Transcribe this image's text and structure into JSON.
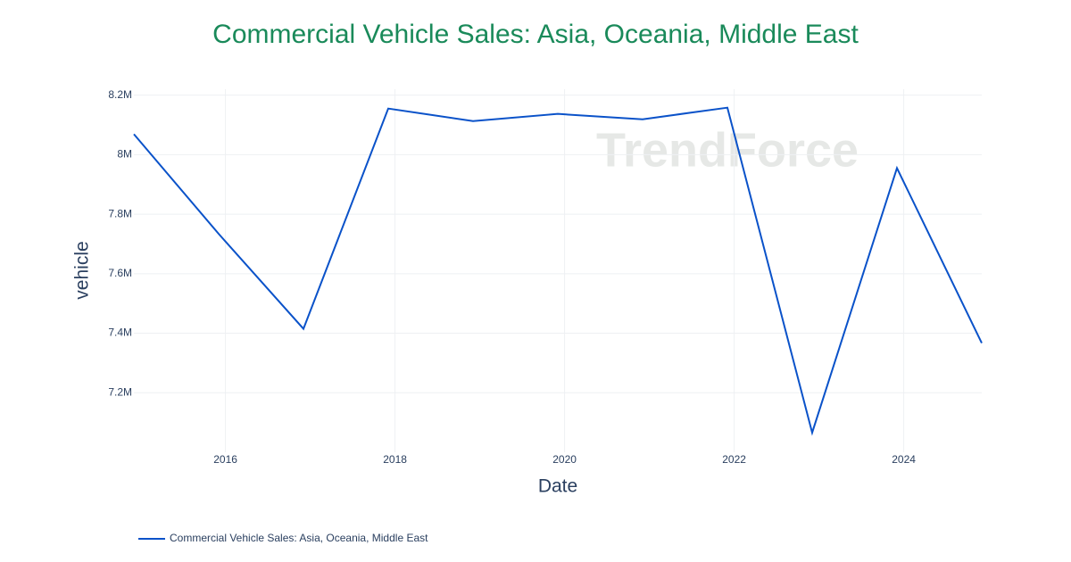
{
  "chart_data": {
    "type": "line",
    "title": "Commercial Vehicle Sales: Asia, Oceania, Middle East",
    "x_label": "Date",
    "y_label": "vehicle",
    "watermark": "TrendForce",
    "x": [
      2014.92,
      2015.92,
      2016.92,
      2017.92,
      2018.92,
      2019.92,
      2020.92,
      2021.92,
      2022.92,
      2023.92,
      2024.92
    ],
    "series": [
      {
        "name": "Commercial Vehicle Sales: Asia, Oceania, Middle East",
        "color": "#0a52c9",
        "values": [
          8069000,
          7734000,
          7415000,
          8155000,
          8113000,
          8137000,
          8119000,
          8158000,
          7066000,
          7955000,
          7367000
        ]
      }
    ],
    "xlim": [
      2014.92,
      2024.92
    ],
    "xticks": [
      2016,
      2018,
      2020,
      2022,
      2024
    ],
    "ylim": [
      7000000,
      8220000
    ],
    "yticks": [
      {
        "value": 7200000,
        "label": "7.2M"
      },
      {
        "value": 7400000,
        "label": "7.4M"
      },
      {
        "value": 7600000,
        "label": "7.6M"
      },
      {
        "value": 7800000,
        "label": "7.8M"
      },
      {
        "value": 8000000,
        "label": "8M"
      },
      {
        "value": 8200000,
        "label": "8.2M"
      }
    ],
    "grid": true,
    "legend": "bottom-left"
  }
}
